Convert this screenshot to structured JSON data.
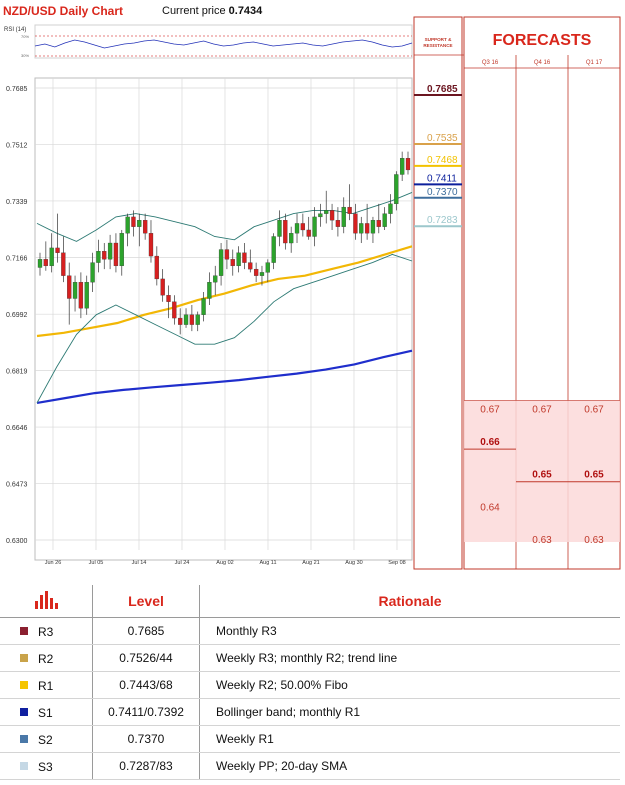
{
  "header": {
    "title": "NZD/USD Daily Chart",
    "price_label": "Current price",
    "price_value": "0.7434"
  },
  "indicator_label": "RSI (14)",
  "rsi_levels": [
    "70%",
    "30%"
  ],
  "sr_header": "SUPPORT & RESISTANCE",
  "forecasts_title": "FORECASTS",
  "quarters": [
    "Q3 16",
    "Q4 16",
    "Q1 17"
  ],
  "forecast_values": [
    {
      "col": 0,
      "value": "0.67",
      "bold": false
    },
    {
      "col": 0,
      "value": "0.66",
      "bold": true
    },
    {
      "col": 0,
      "value": "0.64",
      "bold": false
    },
    {
      "col": 1,
      "value": "0.67",
      "bold": false
    },
    {
      "col": 1,
      "value": "0.65",
      "bold": true
    },
    {
      "col": 1,
      "value": "0.63",
      "bold": false
    },
    {
      "col": 2,
      "value": "0.67",
      "bold": false
    },
    {
      "col": 2,
      "value": "0.65",
      "bold": true
    },
    {
      "col": 2,
      "value": "0.63",
      "bold": false
    }
  ],
  "forecast_levels": [
    0.67,
    0.66,
    0.65,
    0.64,
    0.63
  ],
  "sr_levels": [
    {
      "label": "0.7685",
      "value": 0.7685,
      "color": "#6b1520"
    },
    {
      "label": "0.7535",
      "value": 0.7535,
      "color": "#d9a14a"
    },
    {
      "label": "0.7468",
      "value": 0.7468,
      "color": "#f2c200"
    },
    {
      "label": "0.7411",
      "value": 0.7411,
      "color": "#0b1f9c"
    },
    {
      "label": "0.7370",
      "value": 0.737,
      "color": "#3d6d9c"
    },
    {
      "label": "0.7283",
      "value": 0.7283,
      "color": "#9cc7cc"
    }
  ],
  "chart_data": {
    "type": "candlestick",
    "ylim": [
      0.63,
      0.7685
    ],
    "y_ticks": [
      "0.7685",
      "0.7512",
      "0.7339",
      "0.7166",
      "0.6992",
      "0.6819",
      "0.6646",
      "0.6473",
      "0.6300"
    ],
    "x_ticks": [
      "Jun 26",
      "Jul 05",
      "Jul 14",
      "Jul 24",
      "Aug 02",
      "Aug 11",
      "Aug 21",
      "Aug 30",
      "Sep 08"
    ],
    "candles": [
      {
        "o": 0.7135,
        "h": 0.718,
        "l": 0.711,
        "c": 0.716
      },
      {
        "o": 0.716,
        "h": 0.7215,
        "l": 0.7125,
        "c": 0.714
      },
      {
        "o": 0.714,
        "h": 0.724,
        "l": 0.712,
        "c": 0.7195
      },
      {
        "o": 0.7195,
        "h": 0.73,
        "l": 0.715,
        "c": 0.718
      },
      {
        "o": 0.718,
        "h": 0.723,
        "l": 0.709,
        "c": 0.711
      },
      {
        "o": 0.711,
        "h": 0.715,
        "l": 0.696,
        "c": 0.704
      },
      {
        "o": 0.704,
        "h": 0.711,
        "l": 0.7,
        "c": 0.709
      },
      {
        "o": 0.709,
        "h": 0.712,
        "l": 0.698,
        "c": 0.701
      },
      {
        "o": 0.701,
        "h": 0.711,
        "l": 0.699,
        "c": 0.709
      },
      {
        "o": 0.709,
        "h": 0.718,
        "l": 0.706,
        "c": 0.715
      },
      {
        "o": 0.715,
        "h": 0.722,
        "l": 0.712,
        "c": 0.7185
      },
      {
        "o": 0.7185,
        "h": 0.721,
        "l": 0.713,
        "c": 0.716
      },
      {
        "o": 0.716,
        "h": 0.7235,
        "l": 0.713,
        "c": 0.721
      },
      {
        "o": 0.721,
        "h": 0.724,
        "l": 0.712,
        "c": 0.714
      },
      {
        "o": 0.714,
        "h": 0.725,
        "l": 0.711,
        "c": 0.724
      },
      {
        "o": 0.724,
        "h": 0.73,
        "l": 0.72,
        "c": 0.729
      },
      {
        "o": 0.729,
        "h": 0.731,
        "l": 0.723,
        "c": 0.726
      },
      {
        "o": 0.726,
        "h": 0.73,
        "l": 0.72,
        "c": 0.728
      },
      {
        "o": 0.728,
        "h": 0.73,
        "l": 0.722,
        "c": 0.724
      },
      {
        "o": 0.724,
        "h": 0.728,
        "l": 0.715,
        "c": 0.717
      },
      {
        "o": 0.717,
        "h": 0.72,
        "l": 0.708,
        "c": 0.71
      },
      {
        "o": 0.71,
        "h": 0.713,
        "l": 0.703,
        "c": 0.705
      },
      {
        "o": 0.705,
        "h": 0.708,
        "l": 0.698,
        "c": 0.703
      },
      {
        "o": 0.703,
        "h": 0.705,
        "l": 0.696,
        "c": 0.698
      },
      {
        "o": 0.698,
        "h": 0.701,
        "l": 0.693,
        "c": 0.696
      },
      {
        "o": 0.696,
        "h": 0.701,
        "l": 0.695,
        "c": 0.699
      },
      {
        "o": 0.699,
        "h": 0.702,
        "l": 0.694,
        "c": 0.696
      },
      {
        "o": 0.696,
        "h": 0.7,
        "l": 0.694,
        "c": 0.699
      },
      {
        "o": 0.699,
        "h": 0.706,
        "l": 0.697,
        "c": 0.704
      },
      {
        "o": 0.704,
        "h": 0.712,
        "l": 0.702,
        "c": 0.709
      },
      {
        "o": 0.709,
        "h": 0.714,
        "l": 0.705,
        "c": 0.711
      },
      {
        "o": 0.711,
        "h": 0.721,
        "l": 0.708,
        "c": 0.719
      },
      {
        "o": 0.719,
        "h": 0.722,
        "l": 0.713,
        "c": 0.716
      },
      {
        "o": 0.716,
        "h": 0.719,
        "l": 0.711,
        "c": 0.714
      },
      {
        "o": 0.714,
        "h": 0.72,
        "l": 0.712,
        "c": 0.718
      },
      {
        "o": 0.718,
        "h": 0.721,
        "l": 0.713,
        "c": 0.715
      },
      {
        "o": 0.715,
        "h": 0.719,
        "l": 0.712,
        "c": 0.713
      },
      {
        "o": 0.713,
        "h": 0.715,
        "l": 0.709,
        "c": 0.711
      },
      {
        "o": 0.711,
        "h": 0.714,
        "l": 0.708,
        "c": 0.712
      },
      {
        "o": 0.712,
        "h": 0.716,
        "l": 0.709,
        "c": 0.715
      },
      {
        "o": 0.715,
        "h": 0.724,
        "l": 0.713,
        "c": 0.723
      },
      {
        "o": 0.723,
        "h": 0.731,
        "l": 0.72,
        "c": 0.728
      },
      {
        "o": 0.728,
        "h": 0.73,
        "l": 0.719,
        "c": 0.721
      },
      {
        "o": 0.721,
        "h": 0.726,
        "l": 0.718,
        "c": 0.724
      },
      {
        "o": 0.724,
        "h": 0.73,
        "l": 0.721,
        "c": 0.727
      },
      {
        "o": 0.727,
        "h": 0.73,
        "l": 0.723,
        "c": 0.725
      },
      {
        "o": 0.725,
        "h": 0.729,
        "l": 0.722,
        "c": 0.723
      },
      {
        "o": 0.723,
        "h": 0.732,
        "l": 0.72,
        "c": 0.729
      },
      {
        "o": 0.729,
        "h": 0.733,
        "l": 0.726,
        "c": 0.73
      },
      {
        "o": 0.73,
        "h": 0.737,
        "l": 0.727,
        "c": 0.731
      },
      {
        "o": 0.731,
        "h": 0.733,
        "l": 0.725,
        "c": 0.728
      },
      {
        "o": 0.728,
        "h": 0.732,
        "l": 0.723,
        "c": 0.726
      },
      {
        "o": 0.726,
        "h": 0.735,
        "l": 0.724,
        "c": 0.732
      },
      {
        "o": 0.732,
        "h": 0.739,
        "l": 0.728,
        "c": 0.73
      },
      {
        "o": 0.73,
        "h": 0.733,
        "l": 0.722,
        "c": 0.724
      },
      {
        "o": 0.724,
        "h": 0.729,
        "l": 0.721,
        "c": 0.727
      },
      {
        "o": 0.727,
        "h": 0.733,
        "l": 0.722,
        "c": 0.724
      },
      {
        "o": 0.724,
        "h": 0.729,
        "l": 0.721,
        "c": 0.728
      },
      {
        "o": 0.728,
        "h": 0.733,
        "l": 0.724,
        "c": 0.726
      },
      {
        "o": 0.726,
        "h": 0.732,
        "l": 0.725,
        "c": 0.73
      },
      {
        "o": 0.73,
        "h": 0.736,
        "l": 0.727,
        "c": 0.733
      },
      {
        "o": 0.733,
        "h": 0.743,
        "l": 0.731,
        "c": 0.742
      },
      {
        "o": 0.742,
        "h": 0.749,
        "l": 0.74,
        "c": 0.747
      },
      {
        "o": 0.747,
        "h": 0.749,
        "l": 0.742,
        "c": 0.7434
      }
    ],
    "lines": [
      {
        "name": "",
        "color": "#1f2ecc",
        "points": [
          0.672,
          0.6735,
          0.675,
          0.676,
          0.6768,
          0.6775,
          0.6782,
          0.679,
          0.68,
          0.681,
          0.6822,
          0.6838,
          0.686,
          0.688
        ]
      },
      {
        "name": "",
        "color": "#f2b705",
        "points": [
          0.6925,
          0.6935,
          0.695,
          0.6965,
          0.699,
          0.701,
          0.7035,
          0.7055,
          0.708,
          0.71,
          0.711,
          0.713,
          0.715,
          0.7175,
          0.72
        ]
      },
      {
        "name": "",
        "color": "#2d7a74",
        "points": [
          0.727,
          0.724,
          0.7215,
          0.725,
          0.729,
          0.73,
          0.729,
          0.7275,
          0.726,
          0.723,
          0.722,
          0.726,
          0.728,
          0.73,
          0.731,
          0.731,
          0.73,
          0.732,
          0.734,
          0.7365
        ]
      },
      {
        "name": "",
        "color": "#2d7a74",
        "points": [
          0.672,
          0.683,
          0.693,
          0.699,
          0.702,
          0.699,
          0.696,
          0.693,
          0.69,
          0.69,
          0.692,
          0.697,
          0.703,
          0.707,
          0.709,
          0.711,
          0.713,
          0.715,
          0.7175,
          0.7155
        ]
      }
    ]
  },
  "table": {
    "headers": [
      "Level",
      "Rationale"
    ],
    "rows": [
      {
        "name": "R3",
        "color": "#8b2030",
        "level": "0.7685",
        "rationale": "Monthly R3"
      },
      {
        "name": "R2",
        "color": "#c9a34a",
        "level": "0.7526/44",
        "rationale": "Weekly R3; monthly R2; trend line"
      },
      {
        "name": "R1",
        "color": "#f5c500",
        "level": "0.7443/68",
        "rationale": "Weekly R2; 50.00% Fibo"
      },
      {
        "name": "S1",
        "color": "#1020a0",
        "level": "0.7411/0.7392",
        "rationale": "Bollinger band; monthly R1"
      },
      {
        "name": "S2",
        "color": "#4a78a8",
        "level": "0.7370",
        "rationale": "Weekly R1"
      },
      {
        "name": "S3",
        "color": "#c5d8e5",
        "level": "0.7287/83",
        "rationale": "Weekly PP; 20-day SMA"
      }
    ]
  }
}
